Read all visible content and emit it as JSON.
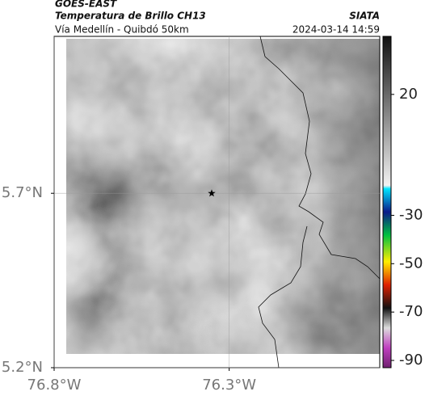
{
  "header": {
    "title": "GOES-EAST",
    "subtitle": "Temperatura de Brillo CH13",
    "location": "Vía Medellín - Quibdó 50km",
    "source": "SIATA",
    "timestamp": "2024-03-14 14:59"
  },
  "map": {
    "xlim": [
      -76.8,
      -75.87
    ],
    "ylim": [
      5.2,
      6.15
    ],
    "xticks": [
      {
        "value": -76.8,
        "label": "76.8°W"
      },
      {
        "value": -76.3,
        "label": "76.3°W"
      }
    ],
    "yticks": [
      {
        "value": 5.7,
        "label": "5.7°N"
      },
      {
        "value": 5.2,
        "label": "5.2°N"
      }
    ],
    "marker": {
      "lon": -76.35,
      "lat": 5.7
    },
    "colorbar": {
      "clim": [
        -93,
        44
      ],
      "ticks": [
        20,
        -30,
        -50,
        -70,
        -90
      ]
    }
  }
}
